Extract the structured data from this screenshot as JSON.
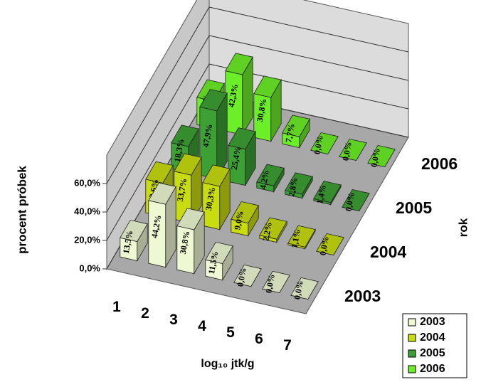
{
  "chart_data": {
    "type": "bar3d",
    "y_label": "procent próbek",
    "x_label": "log₁₀ jtk/g",
    "z_label": "rok",
    "categories": [
      "1",
      "2",
      "3",
      "4",
      "5",
      "6",
      "7"
    ],
    "ylim": [
      0,
      80
    ],
    "yticks": [
      {
        "value": 0,
        "label": "0,0%"
      },
      {
        "value": 20,
        "label": "20,0%"
      },
      {
        "value": 40,
        "label": "40,0%"
      },
      {
        "value": 60,
        "label": "60,0%"
      }
    ],
    "grid": true,
    "legend": "bottom-right",
    "series": [
      {
        "name": "2003",
        "color": "#eef8d2",
        "values": [
          13.5,
          44.2,
          30.8,
          11.5,
          0.0,
          0.0,
          0.0
        ],
        "value_labels": [
          "13,5%",
          "44,2%",
          "30,8%",
          "11,5%",
          "0,0%",
          "0,0%",
          "0,0%"
        ]
      },
      {
        "name": "2004",
        "color": "#c8dc10",
        "values": [
          23.6,
          33.7,
          30.3,
          9.0,
          2.2,
          1.1,
          0.0
        ],
        "value_labels": [
          "23,6%",
          "33,7%",
          "30,3%",
          "9,0%",
          "2,2%",
          "1,1%",
          "0,0%"
        ]
      },
      {
        "name": "2005",
        "color": "#3ca034",
        "values": [
          18.3,
          47.9,
          25.4,
          4.2,
          2.8,
          1.4,
          0.0
        ],
        "value_labels": [
          "18,3%",
          "47,9%",
          "25,4%",
          "4,2%",
          "2,8%",
          "1,4%",
          "0,0%"
        ]
      },
      {
        "name": "2006",
        "color": "#6cee28",
        "values": [
          19.2,
          42.3,
          30.8,
          7.7,
          0.0,
          0.0,
          0.0
        ],
        "value_labels": [
          "19,2%",
          "42,3%",
          "30,8%",
          "7,7%",
          "0,0%",
          "0,0%",
          "0,0%"
        ]
      }
    ]
  }
}
